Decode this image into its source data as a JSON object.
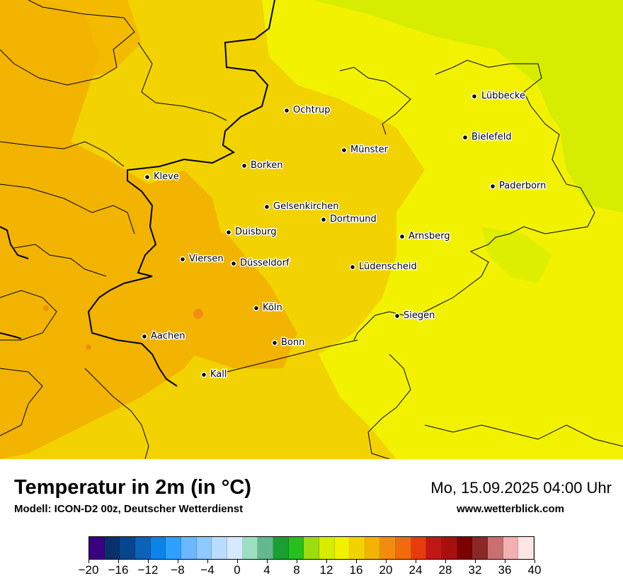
{
  "map": {
    "cities": [
      {
        "name": "Lübbecke"
      },
      {
        "name": "Ochtrup"
      },
      {
        "name": "Bielefeld"
      },
      {
        "name": "Münster"
      },
      {
        "name": "Borken"
      },
      {
        "name": "Kleve"
      },
      {
        "name": "Paderborn"
      },
      {
        "name": "Gelsenkirchen"
      },
      {
        "name": "Dortmund"
      },
      {
        "name": "Duisburg"
      },
      {
        "name": "Arnsberg"
      },
      {
        "name": "Viersen"
      },
      {
        "name": "Düsseldorf"
      },
      {
        "name": "Lüdenscheid"
      },
      {
        "name": "Köln"
      },
      {
        "name": "Siegen"
      },
      {
        "name": "Aachen"
      },
      {
        "name": "Bonn"
      },
      {
        "name": "Kall"
      }
    ]
  },
  "footer": {
    "title": "Temperatur in 2m (in °C)",
    "subtitle": "Modell: ICON-D2 00z, Deutscher Wetterdienst",
    "datetime": "Mo, 15.09.2025 04:00 Uhr",
    "site": "www.wetterblick.com"
  },
  "legend": {
    "colors": [
      "#3b0080",
      "#08306b",
      "#08458f",
      "#0b62b8",
      "#0a84e6",
      "#2ea0ff",
      "#6cb8ff",
      "#8ec9ff",
      "#b9dcff",
      "#d7e9ff",
      "#9be0c0",
      "#64b890",
      "#18a032",
      "#27c01c",
      "#9cdc10",
      "#d6ec00",
      "#f2f200",
      "#f2d200",
      "#f2b400",
      "#f28c10",
      "#f06a10",
      "#e83c0c",
      "#c01818",
      "#a81010",
      "#7c0000",
      "#8c2828",
      "#c87070",
      "#f2b0b0",
      "#ffe6e6"
    ],
    "ticks": [
      "−20",
      "−16",
      "−12",
      "−8",
      "−4",
      "0",
      "4",
      "8",
      "12",
      "16",
      "20",
      "24",
      "28",
      "32",
      "36",
      "40"
    ]
  }
}
